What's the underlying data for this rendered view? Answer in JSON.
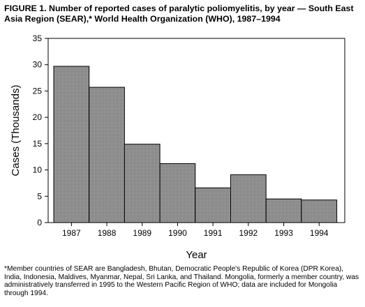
{
  "title": "FIGURE 1. Number of reported cases of paralytic poliomyelitis, by year — South East Asia Region (SEAR),* World Health Organization (WHO), 1987–1994",
  "footnote": "*Member countries of SEAR are Bangladesh, Bhutan, Democratic People's Republic of Korea (DPR Korea), India, Indonesia, Maldives, Myanmar, Nepal, Sri Lanka, and Thailand. Mongolia, formerly a member country, was administratively transferred in 1995 to the Western Pacific Region of WHO; data are included for Mongolia through 1994.",
  "chart_data": {
    "type": "bar",
    "categories": [
      "1987",
      "1988",
      "1989",
      "1990",
      "1991",
      "1992",
      "1993",
      "1994"
    ],
    "values": [
      29.7,
      25.7,
      14.9,
      11.2,
      6.6,
      9.1,
      4.5,
      4.3
    ],
    "xlabel": "Year",
    "ylabel": "Cases (Thousands)",
    "ylim": [
      0,
      35
    ],
    "yticks": [
      0,
      5,
      10,
      15,
      20,
      25,
      30,
      35
    ],
    "bar_color": "#7f7f7f",
    "grid": false,
    "legend": "none"
  }
}
